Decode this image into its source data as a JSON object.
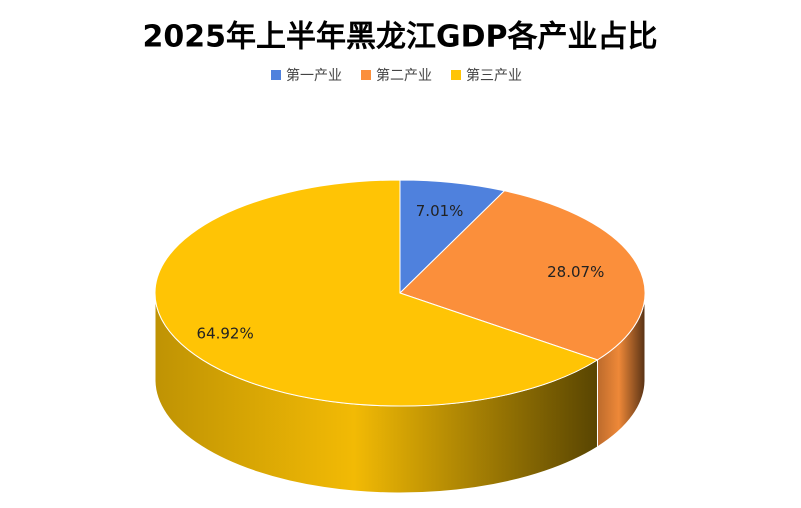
{
  "chart_data": {
    "type": "pie3d",
    "title": "2025年上半年黑龙江GDP各产业占比",
    "series": [
      {
        "name": "第一产业",
        "color": "#4f81dd",
        "values": [
          7.01
        ],
        "value_labels": [
          "7.01%"
        ]
      },
      {
        "name": "第二产业",
        "color": "#fb8f3b",
        "values": [
          28.07
        ],
        "value_labels": [
          "28.07%"
        ]
      },
      {
        "name": "第三产业",
        "color": "#ffc405",
        "values": [
          64.92
        ],
        "value_labels": [
          "64.92%"
        ]
      }
    ],
    "legend": "top"
  }
}
